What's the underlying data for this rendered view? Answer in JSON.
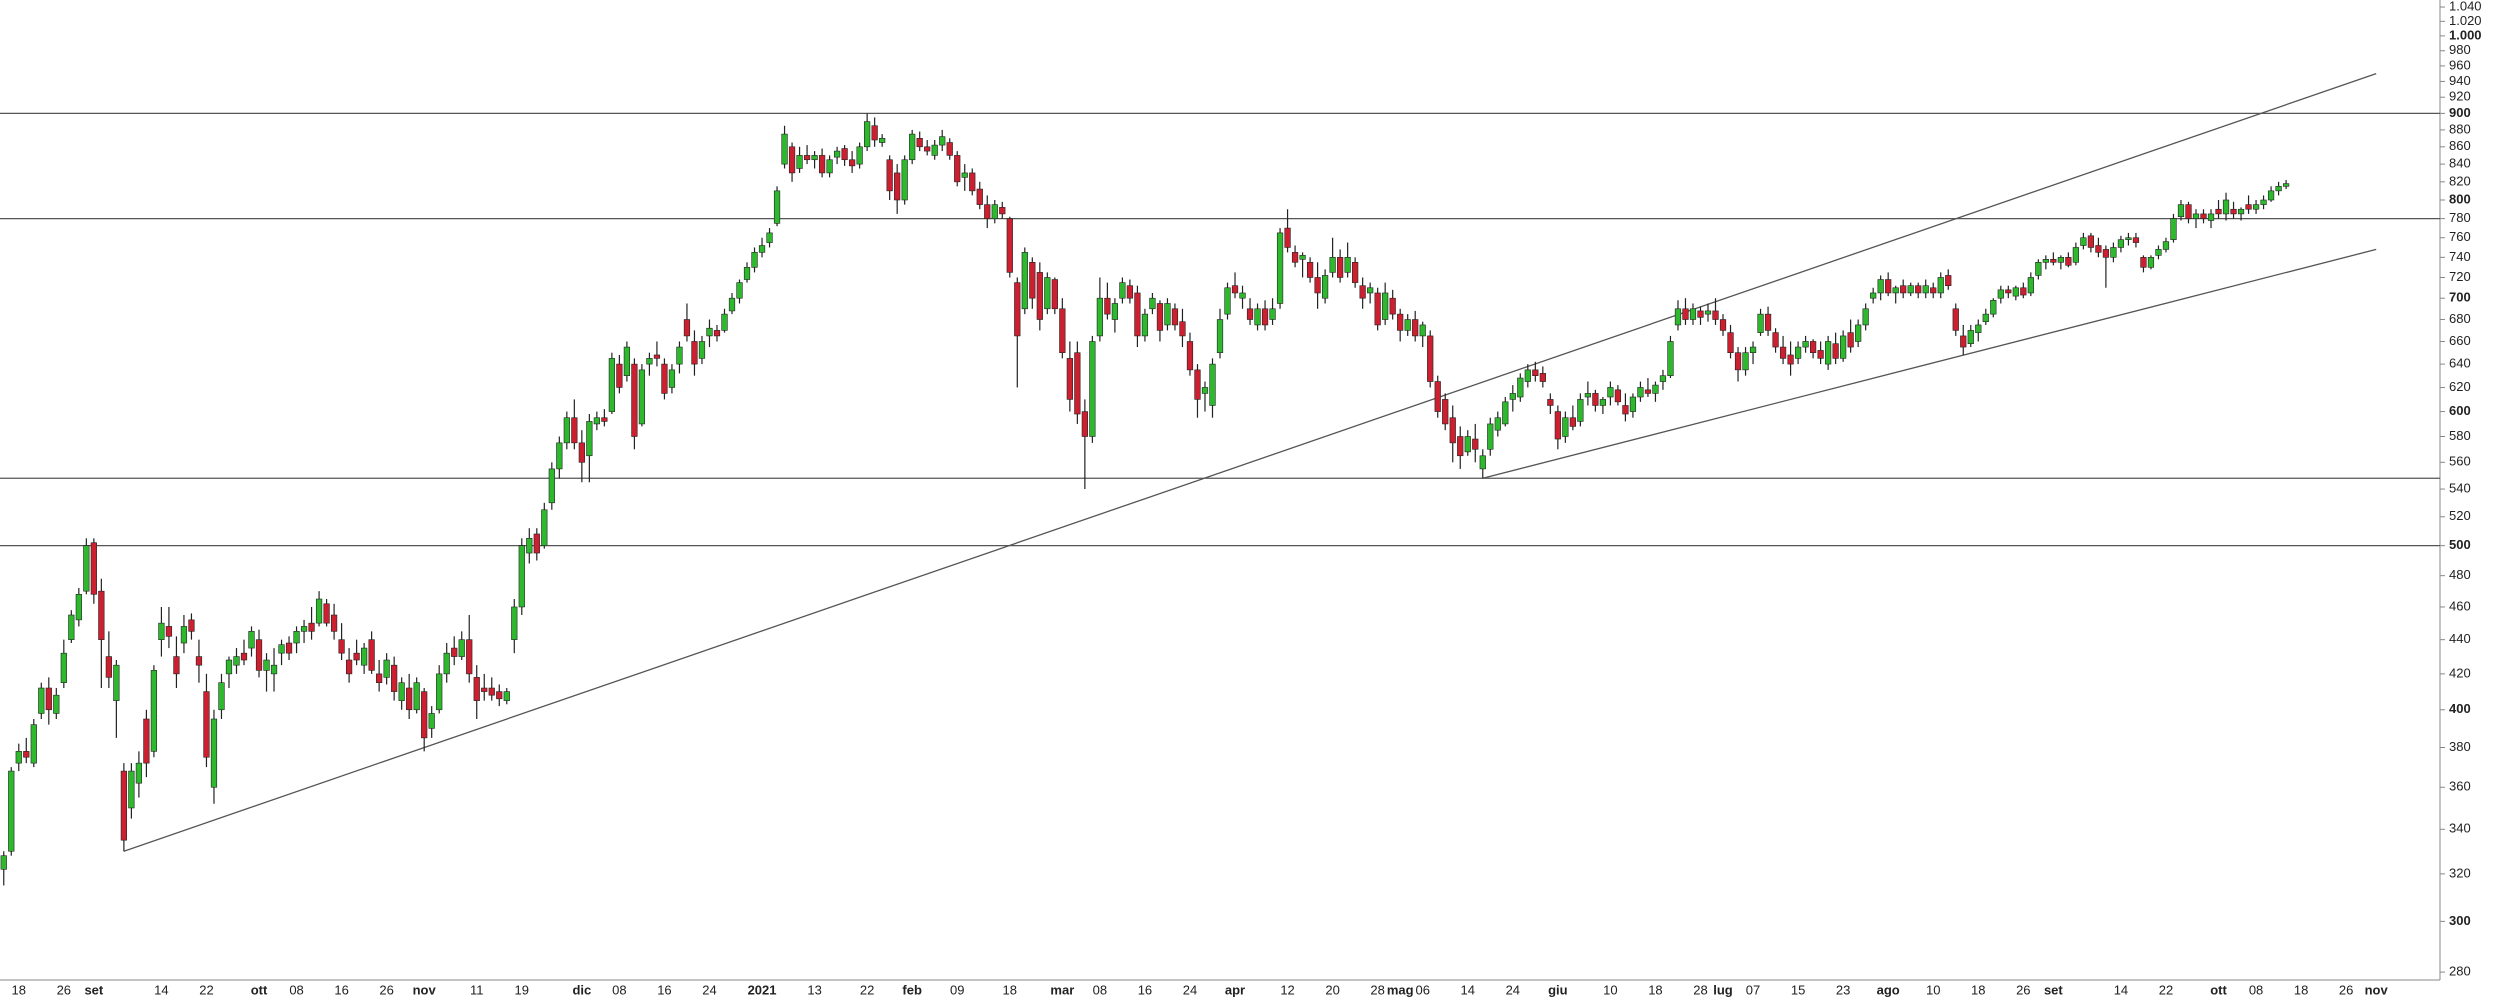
{
  "chart_data": {
    "type": "candlestick",
    "log": true,
    "grid": false,
    "up_color": "#2eb82e",
    "down_color": "#cc1f2f",
    "line_color": "#555555",
    "categories": [
      null,
      null,
      "18",
      null,
      null,
      null,
      null,
      null,
      "26",
      null,
      null,
      null,
      "set",
      null,
      null,
      null,
      null,
      null,
      null,
      null,
      null,
      "14",
      null,
      null,
      null,
      null,
      null,
      "22",
      null,
      null,
      null,
      null,
      null,
      null,
      "ott",
      null,
      null,
      null,
      null,
      "08",
      null,
      null,
      null,
      null,
      null,
      "16",
      null,
      null,
      null,
      null,
      null,
      "26",
      null,
      null,
      null,
      null,
      "nov",
      null,
      null,
      null,
      null,
      null,
      null,
      "11",
      null,
      null,
      null,
      null,
      null,
      "19",
      null,
      null,
      null,
      null,
      null,
      null,
      null,
      "dic",
      null,
      null,
      null,
      null,
      "08",
      null,
      null,
      null,
      null,
      null,
      "16",
      null,
      null,
      null,
      null,
      null,
      "24",
      null,
      null,
      null,
      null,
      null,
      null,
      "2021",
      null,
      null,
      null,
      null,
      null,
      null,
      "13",
      null,
      null,
      null,
      null,
      null,
      null,
      "22",
      null,
      null,
      null,
      null,
      null,
      "feb",
      null,
      null,
      null,
      null,
      null,
      "09",
      null,
      null,
      null,
      null,
      null,
      null,
      "18",
      null,
      null,
      null,
      null,
      null,
      null,
      "mar",
      null,
      null,
      null,
      null,
      "08",
      null,
      null,
      null,
      null,
      null,
      "16",
      null,
      null,
      null,
      null,
      null,
      "24",
      null,
      null,
      null,
      null,
      null,
      "apr",
      null,
      null,
      null,
      null,
      null,
      null,
      "12",
      null,
      null,
      null,
      null,
      null,
      "20",
      null,
      null,
      null,
      null,
      null,
      "28",
      null,
      null,
      "mag",
      null,
      null,
      "06",
      null,
      null,
      null,
      null,
      null,
      "14",
      null,
      null,
      null,
      null,
      null,
      "24",
      null,
      null,
      null,
      null,
      null,
      "giu",
      null,
      null,
      null,
      null,
      null,
      null,
      "10",
      null,
      null,
      null,
      null,
      null,
      "18",
      null,
      null,
      null,
      null,
      null,
      "28",
      null,
      null,
      "lug",
      null,
      null,
      null,
      "07",
      null,
      null,
      null,
      null,
      null,
      "15",
      null,
      null,
      null,
      null,
      null,
      "23",
      null,
      null,
      null,
      null,
      null,
      "ago",
      null,
      null,
      null,
      null,
      null,
      "10",
      null,
      null,
      null,
      null,
      null,
      "18",
      null,
      null,
      null,
      null,
      null,
      "26",
      null,
      null,
      null,
      "set",
      null,
      null,
      null,
      null,
      null,
      null,
      null,
      null,
      "14",
      null,
      null,
      null,
      null,
      null,
      "22",
      null,
      null,
      null,
      null,
      null,
      null,
      "ott",
      null,
      null,
      null,
      null,
      "08",
      null,
      null,
      null,
      null,
      null,
      "18",
      null,
      null,
      null,
      null,
      null,
      "26",
      null,
      null,
      null,
      "nov",
      null,
      null,
      null,
      null,
      null,
      null,
      null,
      null
    ],
    "open": [
      322,
      330,
      372,
      378,
      372,
      398,
      412,
      398,
      415,
      440,
      452,
      470,
      502,
      470,
      430,
      405,
      368,
      350,
      362,
      395,
      378,
      440,
      448,
      430,
      438,
      452,
      430,
      410,
      360,
      400,
      420,
      425,
      432,
      435,
      440,
      422,
      420,
      432,
      438,
      438,
      445,
      450,
      450,
      462,
      455,
      440,
      428,
      432,
      425,
      440,
      420,
      418,
      425,
      405,
      412,
      400,
      410,
      390,
      400,
      420,
      435,
      430,
      440,
      418,
      412,
      412,
      410,
      405,
      440,
      460,
      495,
      508,
      500,
      530,
      555,
      575,
      595,
      575,
      565,
      590,
      595,
      600,
      640,
      630,
      640,
      590,
      640,
      648,
      640,
      620,
      640,
      680,
      660,
      645,
      665,
      670,
      670,
      688,
      700,
      718,
      730,
      745,
      755,
      775,
      840,
      860,
      835,
      850,
      845,
      850,
      830,
      848,
      858,
      845,
      840,
      860,
      885,
      865,
      845,
      830,
      800,
      845,
      870,
      860,
      850,
      862,
      865,
      850,
      825,
      830,
      812,
      795,
      780,
      792,
      780,
      715,
      690,
      735,
      725,
      690,
      718,
      690,
      645,
      650,
      600,
      580,
      665,
      700,
      680,
      700,
      712,
      705,
      665,
      690,
      695,
      675,
      690,
      678,
      660,
      635,
      615,
      605,
      650,
      685,
      712,
      700,
      690,
      675,
      690,
      680,
      695,
      770,
      745,
      738,
      735,
      720,
      700,
      725,
      740,
      725,
      735,
      712,
      705,
      705,
      680,
      700,
      685,
      670,
      680,
      665,
      665,
      625,
      610,
      595,
      580,
      568,
      578,
      555,
      570,
      585,
      590,
      610,
      612,
      625,
      635,
      632,
      610,
      600,
      580,
      595,
      592,
      612,
      615,
      605,
      612,
      618,
      605,
      600,
      612,
      618,
      615,
      625,
      630,
      675,
      690,
      680,
      688,
      685,
      688,
      680,
      668,
      650,
      635,
      650,
      668,
      685,
      668,
      655,
      648,
      645,
      655,
      660,
      652,
      640,
      658,
      645,
      668,
      660,
      675,
      700,
      705,
      718,
      705,
      712,
      705,
      712,
      705,
      710,
      705,
      722,
      690,
      665,
      658,
      668,
      678,
      685,
      700,
      708,
      702,
      710,
      705,
      722,
      735,
      738,
      735,
      740,
      735,
      752,
      762,
      752,
      748,
      740,
      750,
      758,
      760,
      740,
      730,
      742,
      748,
      758,
      782,
      795,
      780,
      785,
      778,
      790,
      785,
      790,
      785,
      795,
      790,
      795,
      800,
      810,
      815,
      null,
      null,
      null,
      null,
      null,
      null,
      null,
      null,
      null,
      null,
      null,
      null,
      null,
      null,
      null,
      null,
      null,
      null,
      null,
      null
    ],
    "high": [
      330,
      370,
      382,
      385,
      395,
      415,
      418,
      412,
      440,
      458,
      472,
      505,
      505,
      478,
      445,
      428,
      372,
      372,
      378,
      400,
      425,
      460,
      460,
      442,
      455,
      456,
      440,
      420,
      400,
      420,
      430,
      435,
      440,
      448,
      446,
      432,
      435,
      440,
      442,
      448,
      452,
      460,
      470,
      465,
      462,
      450,
      435,
      440,
      438,
      445,
      428,
      432,
      430,
      418,
      420,
      418,
      412,
      402,
      425,
      438,
      442,
      445,
      455,
      425,
      420,
      418,
      414,
      412,
      465,
      505,
      512,
      512,
      530,
      560,
      580,
      600,
      610,
      585,
      598,
      600,
      602,
      650,
      648,
      660,
      645,
      640,
      650,
      660,
      645,
      640,
      660,
      695,
      670,
      665,
      680,
      675,
      690,
      705,
      718,
      735,
      750,
      760,
      770,
      815,
      885,
      865,
      860,
      862,
      855,
      858,
      850,
      860,
      862,
      855,
      865,
      900,
      895,
      875,
      850,
      840,
      850,
      880,
      878,
      868,
      868,
      880,
      870,
      855,
      840,
      835,
      820,
      805,
      800,
      798,
      782,
      720,
      750,
      740,
      735,
      725,
      720,
      700,
      660,
      660,
      610,
      665,
      720,
      715,
      700,
      720,
      718,
      712,
      690,
      705,
      698,
      700,
      695,
      690,
      668,
      640,
      625,
      645,
      690,
      715,
      725,
      712,
      700,
      695,
      698,
      700,
      770,
      790,
      752,
      745,
      740,
      735,
      728,
      760,
      748,
      755,
      740,
      720,
      715,
      710,
      715,
      708,
      690,
      685,
      688,
      678,
      670,
      630,
      615,
      605,
      588,
      585,
      590,
      570,
      595,
      600,
      612,
      622,
      632,
      640,
      642,
      638,
      615,
      605,
      600,
      605,
      615,
      625,
      618,
      612,
      625,
      622,
      615,
      615,
      625,
      628,
      625,
      635,
      665,
      698,
      700,
      695,
      692,
      695,
      700,
      685,
      675,
      655,
      655,
      660,
      690,
      692,
      672,
      665,
      660,
      660,
      665,
      662,
      660,
      665,
      668,
      670,
      680,
      680,
      695,
      710,
      722,
      725,
      712,
      718,
      715,
      715,
      718,
      715,
      725,
      728,
      695,
      675,
      675,
      680,
      690,
      700,
      712,
      712,
      712,
      715,
      725,
      738,
      742,
      745,
      742,
      745,
      755,
      765,
      765,
      760,
      752,
      755,
      762,
      765,
      765,
      742,
      742,
      752,
      760,
      785,
      800,
      798,
      790,
      790,
      790,
      800,
      808,
      798,
      792,
      805,
      800,
      805,
      815,
      820,
      822,
      null,
      null,
      null,
      null,
      null,
      null,
      null,
      null,
      null,
      null,
      null,
      null,
      null,
      null,
      null,
      null,
      null,
      null,
      null,
      null
    ],
    "low": [
      315,
      328,
      368,
      372,
      370,
      395,
      392,
      395,
      412,
      438,
      448,
      468,
      462,
      412,
      412,
      385,
      330,
      345,
      355,
      365,
      375,
      430,
      435,
      412,
      432,
      440,
      415,
      370,
      352,
      395,
      412,
      420,
      425,
      430,
      418,
      410,
      410,
      425,
      428,
      432,
      438,
      440,
      448,
      448,
      440,
      428,
      415,
      425,
      420,
      420,
      410,
      414,
      405,
      400,
      395,
      398,
      378,
      385,
      398,
      415,
      425,
      428,
      415,
      395,
      405,
      405,
      402,
      403,
      432,
      455,
      488,
      490,
      498,
      525,
      548,
      570,
      570,
      545,
      545,
      585,
      588,
      598,
      615,
      625,
      570,
      588,
      630,
      638,
      610,
      615,
      632,
      660,
      630,
      640,
      655,
      660,
      668,
      685,
      695,
      715,
      725,
      740,
      750,
      772,
      835,
      820,
      830,
      840,
      835,
      825,
      825,
      840,
      838,
      830,
      835,
      855,
      860,
      860,
      800,
      785,
      795,
      840,
      855,
      850,
      845,
      855,
      845,
      815,
      810,
      805,
      790,
      770,
      775,
      780,
      720,
      620,
      685,
      690,
      670,
      685,
      685,
      645,
      600,
      590,
      540,
      575,
      660,
      680,
      668,
      695,
      695,
      655,
      660,
      685,
      660,
      670,
      670,
      655,
      630,
      595,
      600,
      595,
      645,
      680,
      700,
      690,
      675,
      670,
      670,
      675,
      690,
      745,
      730,
      720,
      715,
      690,
      695,
      720,
      715,
      720,
      710,
      690,
      695,
      670,
      675,
      680,
      660,
      665,
      660,
      655,
      620,
      595,
      585,
      560,
      555,
      565,
      560,
      548,
      565,
      580,
      588,
      600,
      608,
      620,
      625,
      620,
      598,
      570,
      575,
      585,
      588,
      605,
      600,
      598,
      605,
      605,
      592,
      595,
      608,
      612,
      608,
      618,
      628,
      670,
      675,
      675,
      675,
      678,
      675,
      665,
      645,
      625,
      630,
      640,
      665,
      665,
      650,
      640,
      630,
      640,
      650,
      645,
      640,
      635,
      640,
      642,
      650,
      655,
      670,
      695,
      698,
      702,
      695,
      700,
      702,
      700,
      700,
      700,
      700,
      708,
      665,
      648,
      655,
      660,
      675,
      682,
      695,
      700,
      698,
      700,
      702,
      718,
      728,
      732,
      728,
      730,
      732,
      748,
      745,
      740,
      710,
      735,
      745,
      752,
      750,
      725,
      728,
      738,
      745,
      755,
      778,
      775,
      770,
      775,
      770,
      780,
      778,
      780,
      778,
      785,
      785,
      790,
      798,
      805,
      812,
      null,
      null,
      null,
      null,
      null,
      null,
      null,
      null,
      null,
      null,
      null,
      null,
      null,
      null,
      null,
      null,
      null,
      null,
      null,
      null
    ],
    "close": [
      328,
      368,
      378,
      375,
      392,
      412,
      400,
      408,
      432,
      455,
      468,
      500,
      468,
      440,
      418,
      425,
      335,
      368,
      372,
      372,
      422,
      450,
      442,
      420,
      448,
      445,
      425,
      375,
      395,
      415,
      428,
      430,
      428,
      445,
      422,
      428,
      425,
      437,
      432,
      445,
      448,
      445,
      465,
      450,
      445,
      432,
      420,
      428,
      435,
      422,
      415,
      428,
      410,
      415,
      400,
      415,
      385,
      398,
      420,
      432,
      430,
      440,
      420,
      405,
      410,
      408,
      406,
      410,
      460,
      500,
      505,
      495,
      525,
      555,
      575,
      595,
      575,
      560,
      592,
      595,
      592,
      645,
      620,
      655,
      580,
      635,
      645,
      645,
      615,
      635,
      655,
      665,
      640,
      660,
      672,
      665,
      685,
      700,
      715,
      730,
      745,
      752,
      765,
      810,
      875,
      830,
      850,
      845,
      850,
      830,
      845,
      855,
      845,
      838,
      860,
      890,
      868,
      870,
      810,
      800,
      845,
      875,
      860,
      855,
      862,
      872,
      850,
      820,
      830,
      810,
      795,
      780,
      795,
      785,
      725,
      665,
      745,
      700,
      680,
      720,
      690,
      650,
      610,
      598,
      580,
      660,
      700,
      685,
      695,
      715,
      700,
      665,
      685,
      700,
      670,
      695,
      675,
      665,
      635,
      610,
      620,
      640,
      680,
      710,
      705,
      705,
      680,
      690,
      675,
      690,
      765,
      750,
      735,
      742,
      720,
      705,
      722,
      740,
      720,
      740,
      715,
      700,
      710,
      675,
      705,
      685,
      670,
      680,
      665,
      675,
      625,
      600,
      590,
      575,
      565,
      580,
      570,
      565,
      590,
      595,
      608,
      615,
      628,
      635,
      630,
      625,
      605,
      578,
      595,
      588,
      610,
      615,
      605,
      610,
      620,
      608,
      598,
      612,
      620,
      615,
      622,
      630,
      660,
      690,
      680,
      690,
      682,
      688,
      680,
      670,
      650,
      635,
      650,
      655,
      685,
      670,
      655,
      645,
      640,
      655,
      660,
      650,
      645,
      660,
      645,
      665,
      655,
      675,
      690,
      705,
      718,
      705,
      710,
      705,
      712,
      705,
      712,
      705,
      720,
      712,
      670,
      655,
      670,
      675,
      685,
      698,
      708,
      705,
      710,
      703,
      720,
      735,
      738,
      735,
      740,
      732,
      750,
      760,
      750,
      745,
      740,
      750,
      758,
      760,
      755,
      730,
      740,
      748,
      756,
      780,
      795,
      780,
      785,
      780,
      785,
      785,
      800,
      785,
      790,
      790,
      795,
      800,
      810,
      815,
      818,
      null,
      null,
      null,
      null,
      null,
      null,
      null,
      null,
      null,
      null,
      null,
      null,
      null,
      null,
      null,
      null,
      null,
      null,
      null,
      null
    ],
    "hlines": [
      900,
      780,
      548,
      500
    ],
    "trendlines": [
      {
        "x": [
          16,
          316
        ],
        "y": [
          330,
          950
        ]
      },
      {
        "x": [
          197,
          316
        ],
        "y": [
          548,
          748
        ]
      }
    ],
    "ylim": [
      277,
      1050
    ],
    "yticks": [
      280,
      300,
      320,
      340,
      360,
      380,
      400,
      420,
      440,
      460,
      480,
      500,
      520,
      540,
      560,
      580,
      600,
      620,
      640,
      660,
      680,
      700,
      720,
      740,
      760,
      780,
      800,
      820,
      840,
      860,
      880,
      900,
      920,
      940,
      960,
      980,
      {
        "value": 1000,
        "label": "1.000"
      },
      {
        "value": 1020,
        "label": "1.020"
      },
      {
        "value": 1040,
        "label": "1.040"
      }
    ]
  }
}
